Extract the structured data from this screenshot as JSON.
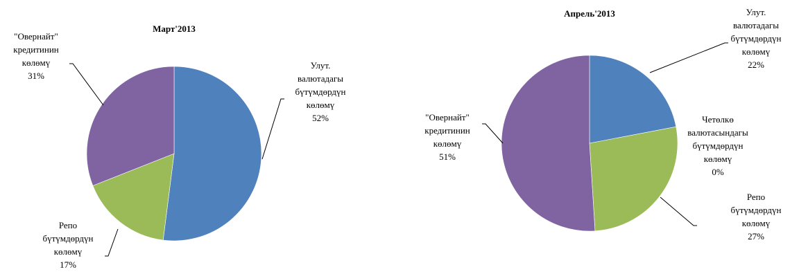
{
  "chart_data": [
    {
      "type": "pie",
      "title": "Март'2013",
      "slices": [
        {
          "label": "Улут. валютадагы бүтүмдөрдүн көлөмү",
          "lines": [
            "Улут.",
            "валютадагы",
            "бүтүмдөрдүн",
            "көлөмү"
          ],
          "value": 52,
          "percent": "52%",
          "color": "#4F81BD"
        },
        {
          "label": "Репо бүтүмдөрдүн көлөмү",
          "lines": [
            "Репо",
            "бүтүмдөрдүн",
            "көлөмү"
          ],
          "value": 17,
          "percent": "17%",
          "color": "#9BBB59"
        },
        {
          "label": "\"Овернайт\" кредитинин көлөмү",
          "lines": [
            "\"Овернайт\"",
            "кредитинин",
            "көлөмү"
          ],
          "value": 31,
          "percent": "31%",
          "color": "#8064A2"
        }
      ]
    },
    {
      "type": "pie",
      "title": "Апрель'2013",
      "slices": [
        {
          "label": "Улут. валютадагы бүтүмдөрдүн көлөмү",
          "lines": [
            "Улут.",
            "валютадагы",
            "бүтүмдөрдүн",
            "көлөмү"
          ],
          "value": 22,
          "percent": "22%",
          "color": "#4F81BD"
        },
        {
          "label": "Четөлкө валютасындагы бүтүмдөрдүн көлөмү",
          "lines": [
            "Четөлкө",
            "валютасындагы",
            "бүтүмдөрдүн",
            "көлөмү"
          ],
          "value": 0,
          "percent": "0%",
          "color": "#C0504D"
        },
        {
          "label": "Репо бүтүмдөрдүн көлөмү",
          "lines": [
            "Репо",
            "бүтүмдөрдүн",
            "көлөмү"
          ],
          "value": 27,
          "percent": "27%",
          "color": "#9BBB59"
        },
        {
          "label": "\"Овернайт\" кредитинин көлөмү",
          "lines": [
            "\"Овернайт\"",
            "кредитинин",
            "көлөмү"
          ],
          "value": 51,
          "percent": "51%",
          "color": "#8064A2"
        }
      ]
    }
  ]
}
